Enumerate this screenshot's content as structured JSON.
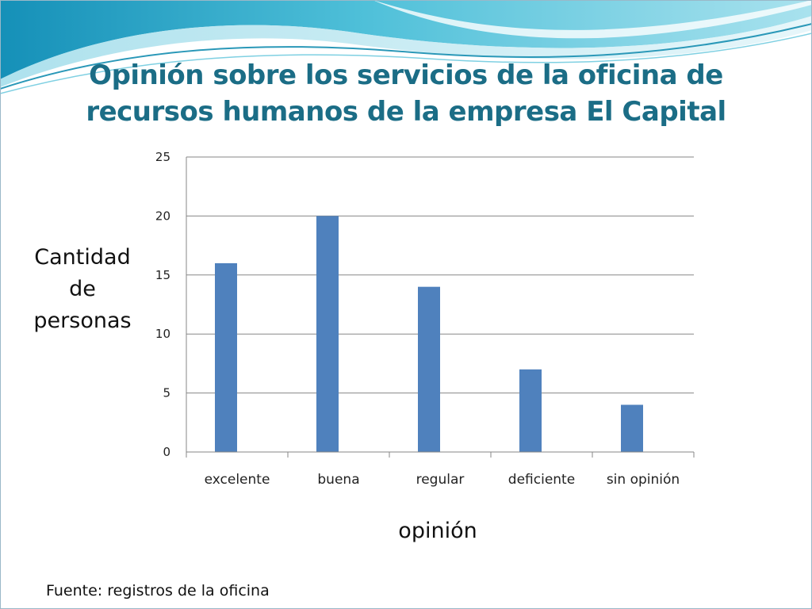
{
  "slide": {
    "title_line1": "Opinión sobre los servicios de la oficina de",
    "title_line2": "recursos humanos de la empresa El Capital",
    "source": "Fuente: registros de la oficina",
    "title_color": "#1b6d86",
    "wave_colors": [
      "#1a8fb3",
      "#5cc5dc",
      "#bfe8f1",
      "#e6f6fa"
    ]
  },
  "chart_data": {
    "type": "bar",
    "title": "",
    "categories": [
      "excelente",
      "buena",
      "regular",
      "deficiente",
      "sin opinión"
    ],
    "values": [
      16,
      20,
      14,
      7,
      4
    ],
    "xlabel": "opinión",
    "ylabel_lines": [
      "Cantidad",
      "de",
      "personas"
    ],
    "ylim": [
      0,
      25
    ],
    "yticks": [
      "0",
      "5",
      "10",
      "15",
      "20",
      "25"
    ],
    "bar_color": "#4f81bd",
    "grid": true,
    "legend": "none"
  }
}
